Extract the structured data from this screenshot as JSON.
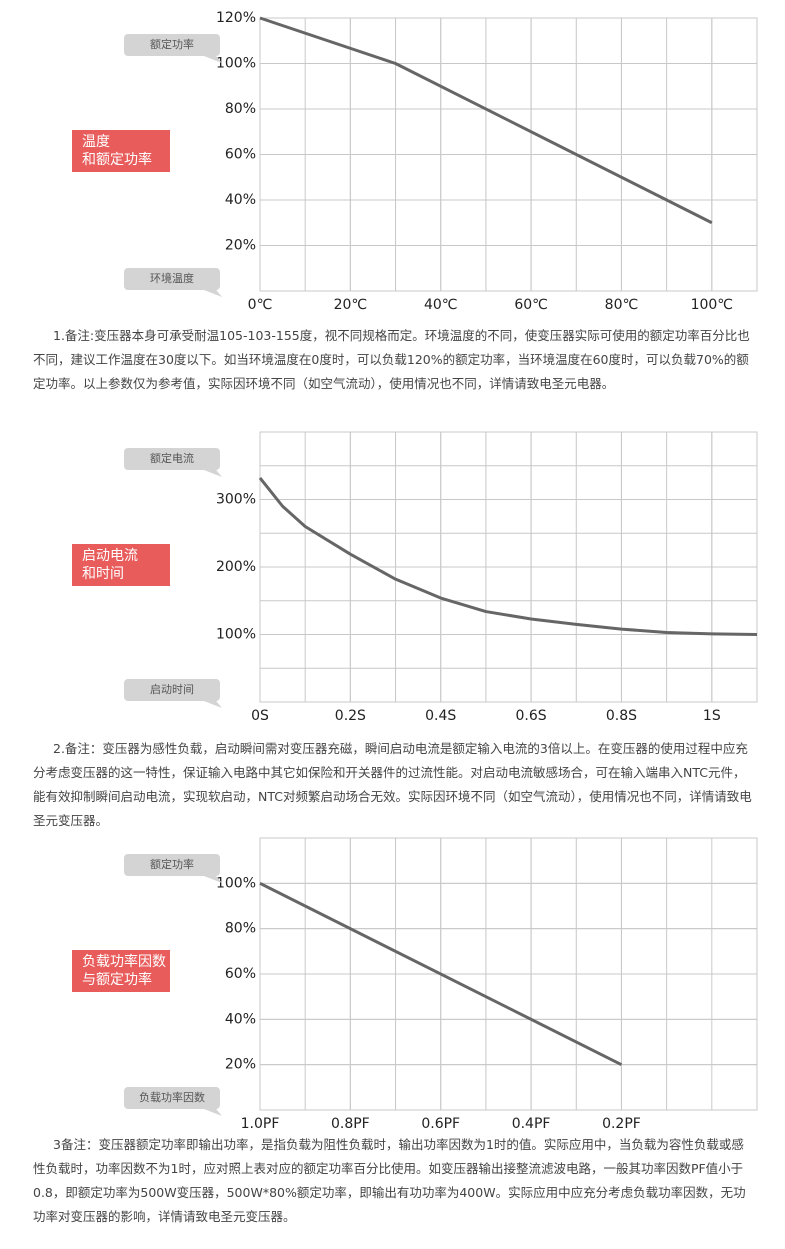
{
  "chart_data": [
    {
      "type": "line",
      "ylabel": "额定功率",
      "xlabel": "环境温度",
      "annotation": [
        "温度",
        "和额定功率"
      ],
      "x": [
        0,
        30,
        100
      ],
      "values": [
        120,
        100,
        30
      ],
      "color": "#666666",
      "xlim": [
        0,
        110
      ],
      "xticks": [
        {
          "value": 0,
          "label": "0℃"
        },
        {
          "value": 20,
          "label": "20℃"
        },
        {
          "value": 40,
          "label": "40℃"
        },
        {
          "value": 60,
          "label": "60℃"
        },
        {
          "value": 80,
          "label": "80℃"
        },
        {
          "value": 100,
          "label": "100℃"
        }
      ],
      "ylim": [
        0,
        120
      ],
      "yticks": [
        {
          "value": 20,
          "label": "20%"
        },
        {
          "value": 40,
          "label": "40%"
        },
        {
          "value": 60,
          "label": "60%"
        },
        {
          "value": 80,
          "label": "80%"
        },
        {
          "value": 100,
          "label": "100%"
        },
        {
          "value": 120,
          "label": "120%"
        }
      ],
      "grid": true,
      "note": "1.备注:变压器本身可承受耐温105-103-155度，视不同规格而定。环境温度的不同，使变压器实际可使用的额定功率百分比也不同，建议工作温度在30度以下。如当环境温度在0度时，可以负载120%的额定功率，当环境温度在60度时，可以负载70%的额定功率。以上参数仅为参考值，实际因环境不同（如空气流动），使用情况也不同，详情请致电圣元电器。"
    },
    {
      "type": "line",
      "ylabel": "额定电流",
      "xlabel": "启动时间",
      "annotation": [
        "启动电流",
        "和时间"
      ],
      "x": [
        0,
        0.05,
        0.1,
        0.2,
        0.3,
        0.4,
        0.5,
        0.6,
        0.7,
        0.8,
        0.9,
        1.0,
        1.1
      ],
      "values": [
        332,
        290,
        260,
        219,
        182,
        154,
        134,
        123,
        115,
        108,
        103,
        101,
        100
      ],
      "color": "#666666",
      "xlim": [
        0,
        1.1
      ],
      "xticks": [
        {
          "value": 0,
          "label": "0S"
        },
        {
          "value": 0.2,
          "label": "0.2S"
        },
        {
          "value": 0.4,
          "label": "0.4S"
        },
        {
          "value": 0.6,
          "label": "0.6S"
        },
        {
          "value": 0.8,
          "label": "0.8S"
        },
        {
          "value": 1,
          "label": "1S"
        }
      ],
      "ylim": [
        0,
        400
      ],
      "yticks": [
        {
          "value": 100,
          "label": "100%"
        },
        {
          "value": 200,
          "label": "200%"
        },
        {
          "value": 300,
          "label": "300%"
        }
      ],
      "grid": true,
      "note": "2.备注：变压器为感性负载，启动瞬间需对变压器充磁，瞬间启动电流是额定输入电流的3倍以上。在变压器的使用过程中应充分考虑变压器的这一特性，保证输入电路中其它如保险和开关器件的过流性能。对启动电流敏感场合，可在输入端串入NTC元件，能有效抑制瞬间启动电流，实现软启动，NTC对频繁启动场合无效。实际因环境不同（如空气流动），使用情况也不同，详情请致电圣元变压器。"
    },
    {
      "type": "line",
      "ylabel": "额定功率",
      "xlabel": "负载功率因数",
      "annotation": [
        "负载功率因数",
        "与额定功率"
      ],
      "x": [
        1.0,
        0.2
      ],
      "values": [
        100,
        20
      ],
      "color": "#666666",
      "xlim": [
        1.0,
        -0.1
      ],
      "xticks": [
        {
          "value": 1.0,
          "label": "1.0PF"
        },
        {
          "value": 0.8,
          "label": "0.8PF"
        },
        {
          "value": 0.6,
          "label": "0.6PF"
        },
        {
          "value": 0.4,
          "label": "0.4PF"
        },
        {
          "value": 0.2,
          "label": "0.2PF"
        }
      ],
      "ylim": [
        0,
        120
      ],
      "yticks": [
        {
          "value": 20,
          "label": "20%"
        },
        {
          "value": 40,
          "label": "40%"
        },
        {
          "value": 60,
          "label": "60%"
        },
        {
          "value": 80,
          "label": "80%"
        },
        {
          "value": 100,
          "label": "100%"
        }
      ],
      "grid": true,
      "note": "3备注：变压器额定功率即输出功率，是指负载为阻性负载时，输出功率因数为1时的值。实际应用中，当负载为容性负载或感性负载时，功率因数不为1时，应对照上表对应的额定功率百分比使用。如变压器输出接整流滤波电路，一般其功率因数PF值小于0.8，即额定功率为500W变压器，500W*80%额定功率，即输出有功功率为400W。实际应用中应充分考虑负载功率因数，无功功率对变压器的影响，详情请致电圣元变压器。"
    }
  ]
}
